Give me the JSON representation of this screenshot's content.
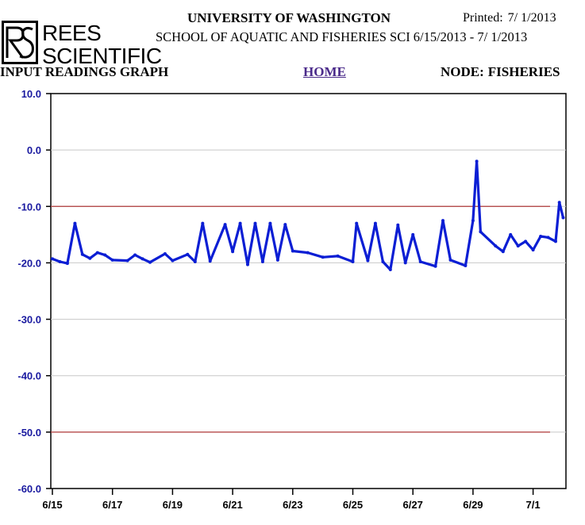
{
  "header": {
    "logo_line1": "REES",
    "logo_line2": "SCIENTIFIC",
    "title": "UNIVERSITY OF WASHINGTON",
    "printed_label": "Printed:",
    "printed_value": "7/ 1/2013",
    "school": "SCHOOL OF AQUATIC AND FISHERIES SCI",
    "date_range": "6/15/2013 - 7/ 1/2013"
  },
  "subbar": {
    "left": "INPUT READINGS GRAPH",
    "home": "HOME",
    "node_label": "NODE:",
    "node_value": "FISHERIES"
  },
  "colors": {
    "series": "#0b1ed4",
    "threshold": "#b03a3a",
    "y_tick_text": "#1a1aa0",
    "grid": "#c8c8c8"
  },
  "chart_data": {
    "type": "line",
    "title": "",
    "xlabel": "",
    "ylabel": "",
    "ylim": [
      -60.0,
      10.0
    ],
    "y_ticks": [
      "10.0",
      "0.0",
      "-10.0",
      "-20.0",
      "-30.0",
      "-40.0",
      "-50.0",
      "-60.0"
    ],
    "x_ticks": [
      "6/15",
      "6/17",
      "6/19",
      "6/21",
      "6/23",
      "6/25",
      "6/27",
      "6/29",
      "7/1"
    ],
    "x_range_days": "6/15/2013 - 7/ 1/2013",
    "grid": true,
    "thresholds": [
      -10.0,
      -50.0
    ],
    "series": [
      {
        "values": [
          [
            "6/15 00:00",
            -19.3
          ],
          [
            "6/15 06:00",
            -19.8
          ],
          [
            "6/15 12:00",
            -20.1
          ],
          [
            "6/15 18:00",
            -13.0
          ],
          [
            "6/16 00:00",
            -18.5
          ],
          [
            "6/16 06:00",
            -19.2
          ],
          [
            "6/16 12:00",
            -18.2
          ],
          [
            "6/16 18:00",
            -18.6
          ],
          [
            "6/17 00:00",
            -19.5
          ],
          [
            "6/17 12:00",
            -19.6
          ],
          [
            "6/17 18:00",
            -18.6
          ],
          [
            "6/18 00:00",
            -19.3
          ],
          [
            "6/18 06:00",
            -19.9
          ],
          [
            "6/18 18:00",
            -18.4
          ],
          [
            "6/19 00:00",
            -19.6
          ],
          [
            "6/19 12:00",
            -18.5
          ],
          [
            "6/19 18:00",
            -19.8
          ],
          [
            "6/20 00:00",
            -13.0
          ],
          [
            "6/20 06:00",
            -19.7
          ],
          [
            "6/20 18:00",
            -13.2
          ],
          [
            "6/21 00:00",
            -18.0
          ],
          [
            "6/21 06:00",
            -13.0
          ],
          [
            "6/21 12:00",
            -20.3
          ],
          [
            "6/21 18:00",
            -13.0
          ],
          [
            "6/22 00:00",
            -19.8
          ],
          [
            "6/22 06:00",
            -13.0
          ],
          [
            "6/22 12:00",
            -19.5
          ],
          [
            "6/22 18:00",
            -13.2
          ],
          [
            "6/23 00:00",
            -17.9
          ],
          [
            "6/23 12:00",
            -18.2
          ],
          [
            "6/24 00:00",
            -19.0
          ],
          [
            "6/24 12:00",
            -18.8
          ],
          [
            "6/25 00:00",
            -19.8
          ],
          [
            "6/25 03:00",
            -13.0
          ],
          [
            "6/25 12:00",
            -19.6
          ],
          [
            "6/25 18:00",
            -13.0
          ],
          [
            "6/26 00:00",
            -19.8
          ],
          [
            "6/26 06:00",
            -21.2
          ],
          [
            "6/26 12:00",
            -13.3
          ],
          [
            "6/26 18:00",
            -20.0
          ],
          [
            "6/27 00:00",
            -15.0
          ],
          [
            "6/27 06:00",
            -19.8
          ],
          [
            "6/27 18:00",
            -20.6
          ],
          [
            "6/28 00:00",
            -12.5
          ],
          [
            "6/28 06:00",
            -19.5
          ],
          [
            "6/28 18:00",
            -20.5
          ],
          [
            "6/29 00:00",
            -12.5
          ],
          [
            "6/29 03:00",
            -2.0
          ],
          [
            "6/29 06:00",
            -14.5
          ],
          [
            "6/29 18:00",
            -17.0
          ],
          [
            "6/30 00:00",
            -18.0
          ],
          [
            "6/30 06:00",
            -15.0
          ],
          [
            "6/30 12:00",
            -17.0
          ],
          [
            "6/30 18:00",
            -16.2
          ],
          [
            "7/1 00:00",
            -17.7
          ],
          [
            "7/1 06:00",
            -15.3
          ],
          [
            "7/1 12:00",
            -15.5
          ],
          [
            "7/1 18:00",
            -16.2
          ],
          [
            "7/1 21:00",
            -9.3
          ],
          [
            "7/2 00:00",
            -12.0
          ]
        ]
      }
    ]
  }
}
